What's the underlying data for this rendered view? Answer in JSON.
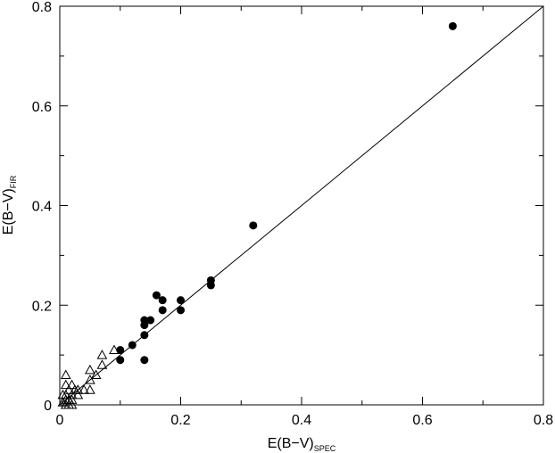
{
  "chart_data": {
    "type": "scatter",
    "title": "",
    "xlabel": {
      "main": "E(B−V)",
      "sub": "SPEC"
    },
    "ylabel": {
      "main": "E(B−V)",
      "sub": "FIR"
    },
    "xlim": [
      0,
      0.8
    ],
    "ylim": [
      0,
      0.8
    ],
    "xticks": [
      0,
      0.2,
      0.4,
      0.6,
      0.8
    ],
    "yticks": [
      0,
      0.2,
      0.4,
      0.6,
      0.8
    ],
    "xtick_labels": [
      "0",
      "0.2",
      "0.4",
      "0.6",
      "0.8"
    ],
    "ytick_labels": [
      "0",
      "0.2",
      "0.4",
      "0.6",
      "0.8"
    ],
    "grid": false,
    "reference_line": {
      "type": "identity",
      "x": [
        0,
        0.8
      ],
      "y": [
        0,
        0.8
      ]
    },
    "series": [
      {
        "marker": "filled-circle",
        "color": "#000000",
        "points": [
          [
            0.65,
            0.76
          ],
          [
            0.32,
            0.36
          ],
          [
            0.25,
            0.25
          ],
          [
            0.25,
            0.24
          ],
          [
            0.2,
            0.21
          ],
          [
            0.2,
            0.19
          ],
          [
            0.17,
            0.21
          ],
          [
            0.17,
            0.19
          ],
          [
            0.16,
            0.22
          ],
          [
            0.15,
            0.17
          ],
          [
            0.14,
            0.17
          ],
          [
            0.14,
            0.16
          ],
          [
            0.14,
            0.14
          ],
          [
            0.14,
            0.09
          ],
          [
            0.12,
            0.12
          ],
          [
            0.1,
            0.11
          ],
          [
            0.1,
            0.09
          ]
        ]
      },
      {
        "marker": "open-triangle",
        "color": "#000000",
        "points": [
          [
            0.09,
            0.11
          ],
          [
            0.07,
            0.1
          ],
          [
            0.07,
            0.08
          ],
          [
            0.06,
            0.06
          ],
          [
            0.05,
            0.07
          ],
          [
            0.05,
            0.05
          ],
          [
            0.05,
            0.03
          ],
          [
            0.04,
            0.03
          ],
          [
            0.03,
            0.03
          ],
          [
            0.03,
            0.02
          ],
          [
            0.025,
            0.03
          ],
          [
            0.02,
            0.04
          ],
          [
            0.02,
            0.02
          ],
          [
            0.02,
            0.01
          ],
          [
            0.015,
            0.03
          ],
          [
            0.015,
            0.01
          ],
          [
            0.01,
            0.06
          ],
          [
            0.01,
            0.04
          ],
          [
            0.01,
            0.02
          ],
          [
            0.01,
            0.01
          ],
          [
            0.01,
            0.0
          ],
          [
            0.005,
            0.005
          ],
          [
            0.005,
            0.02
          ],
          [
            0.02,
            0.0
          ],
          [
            0.015,
            0.0
          ]
        ]
      }
    ]
  }
}
